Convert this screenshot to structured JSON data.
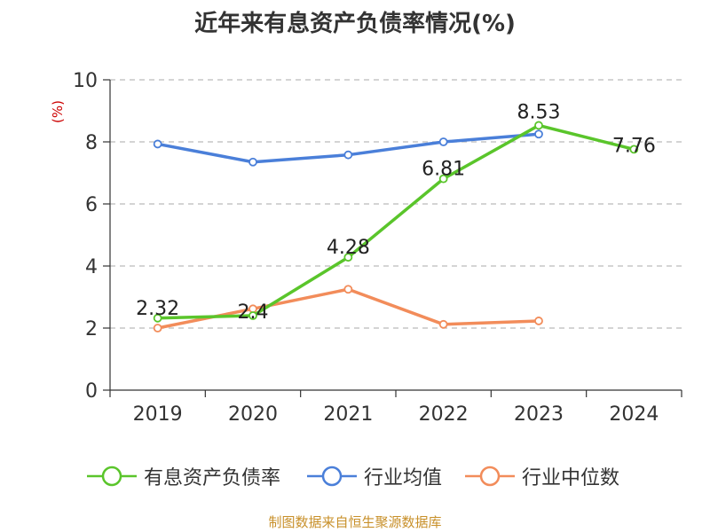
{
  "title": "近年来有息资产负债率情况(%)",
  "source": "制图数据来自恒生聚源数据库",
  "colors": {
    "debt_ratio": "#5ac52b",
    "industry_avg": "#4a7fd9",
    "industry_median": "#f28c5a",
    "axis": "#333333",
    "grid": "#bbbbbb",
    "ylabel": "#cc0000"
  },
  "chart_data": {
    "type": "line",
    "title": "近年来有息资产负债率情况(%)",
    "xlabel": "",
    "ylabel": "(%)",
    "categories": [
      "2019",
      "2020",
      "2021",
      "2022",
      "2023",
      "2024"
    ],
    "ylim": [
      0,
      10
    ],
    "yticks": [
      0,
      2,
      4,
      6,
      8,
      10
    ],
    "grid": true,
    "legend_position": "bottom",
    "series": [
      {
        "key": "debt_ratio",
        "name": "有息资产负债率",
        "values": [
          2.32,
          2.4,
          4.28,
          6.81,
          8.53,
          7.76
        ],
        "labels": [
          "2.32",
          "2.4",
          "4.28",
          "6.81",
          "8.53",
          "7.76"
        ],
        "show_labels": true,
        "color": "#5ac52b"
      },
      {
        "key": "industry_avg",
        "name": "行业均值",
        "values": [
          7.93,
          7.35,
          7.58,
          8.0,
          8.25,
          null
        ],
        "show_labels": false,
        "color": "#4a7fd9"
      },
      {
        "key": "industry_median",
        "name": "行业中位数",
        "values": [
          2.0,
          2.62,
          3.25,
          2.12,
          2.23,
          null
        ],
        "show_labels": false,
        "color": "#f28c5a"
      }
    ]
  }
}
